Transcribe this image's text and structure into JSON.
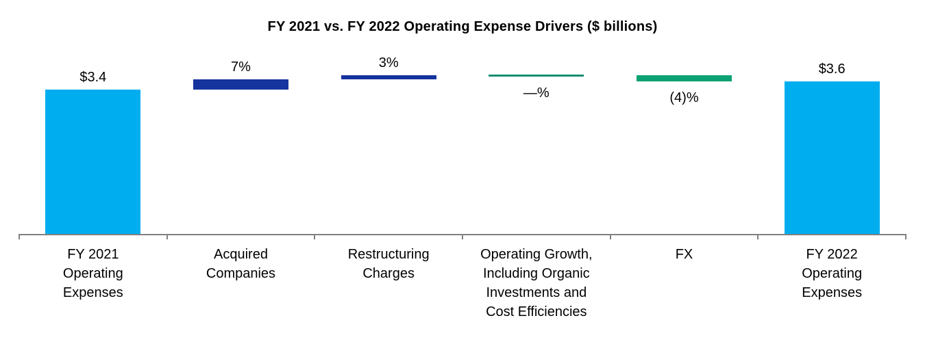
{
  "page": {
    "background": "#FFFFFF"
  },
  "chart_data": {
    "type": "bar",
    "subtype": "waterfall",
    "title": "FY 2021 vs. FY 2022 Operating Expense Drivers ($ billions)",
    "unit": "$ billions",
    "legend": "none",
    "gridlines": false,
    "y_axis_visible": false,
    "categories": [
      "FY 2021 Operating Expenses",
      "Acquired Companies",
      "Restructuring Charges",
      "Operating Growth, Including Organic Investments and Cost Efficiencies",
      "FX",
      "FY 2022 Operating Expenses"
    ],
    "steps": [
      {
        "category_lines": [
          "FY 2021",
          "Operating",
          "Expenses"
        ],
        "label": "$3.4",
        "label_position": "above",
        "role": "total",
        "start": 0,
        "end": 3.4
      },
      {
        "category_lines": [
          "Acquired",
          "Companies"
        ],
        "label": "7%",
        "label_position": "above",
        "role": "increase",
        "start": 3.4,
        "end": 3.64
      },
      {
        "category_lines": [
          "Restructuring",
          "Charges"
        ],
        "label": "3%",
        "label_position": "above",
        "role": "increase",
        "start": 3.64,
        "end": 3.74
      },
      {
        "category_lines": [
          "Operating Growth,",
          "Including Organic",
          "Investments and",
          "Cost Efficiencies"
        ],
        "label": "—%",
        "label_position": "below",
        "role": "flat",
        "start": 3.74,
        "end": 3.74
      },
      {
        "category_lines": [
          "FX"
        ],
        "label": "(4)%",
        "label_position": "below",
        "role": "decrease",
        "start": 3.74,
        "end": 3.6
      },
      {
        "category_lines": [
          "FY 2022",
          "Operating",
          "Expenses"
        ],
        "label": "$3.6",
        "label_position": "above",
        "role": "total",
        "start": 0,
        "end": 3.6
      }
    ],
    "colors": {
      "total": "#00AEEF",
      "increase": "#16349E",
      "decrease": "#0AA173",
      "flat": "#168E72",
      "axis": "#808080",
      "label_text": "#000000"
    }
  }
}
